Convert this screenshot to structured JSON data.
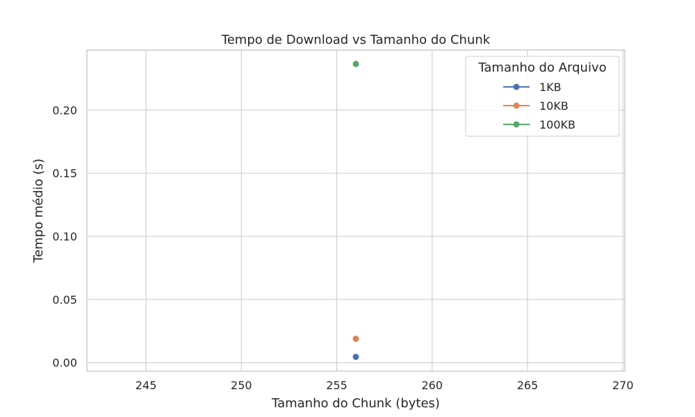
{
  "chart_data": {
    "type": "scatter",
    "title": "Tempo de Download vs Tamanho do Chunk",
    "xlabel": "Tamanho do Chunk (bytes)",
    "ylabel": "Tempo médio (s)",
    "xlim": [
      241.9,
      270.1
    ],
    "ylim": [
      -0.0068,
      0.2475
    ],
    "xticks": [
      245,
      250,
      255,
      260,
      265,
      270
    ],
    "xtick_labels": [
      "245",
      "250",
      "255",
      "260",
      "265",
      "270"
    ],
    "yticks": [
      0.0,
      0.05,
      0.1,
      0.15,
      0.2
    ],
    "ytick_labels": [
      "0.00",
      "0.05",
      "0.10",
      "0.15",
      "0.20"
    ],
    "grid": true,
    "legend": {
      "title": "Tamanho do Arquivo",
      "placement": "top-right"
    },
    "series": [
      {
        "name": "1KB",
        "color": "#4c72b0",
        "x": [
          256
        ],
        "y": [
          0.0045
        ]
      },
      {
        "name": "10KB",
        "color": "#dd8452",
        "x": [
          256
        ],
        "y": [
          0.0188
        ]
      },
      {
        "name": "100KB",
        "color": "#55a868",
        "x": [
          256
        ],
        "y": [
          0.2365
        ]
      }
    ]
  }
}
